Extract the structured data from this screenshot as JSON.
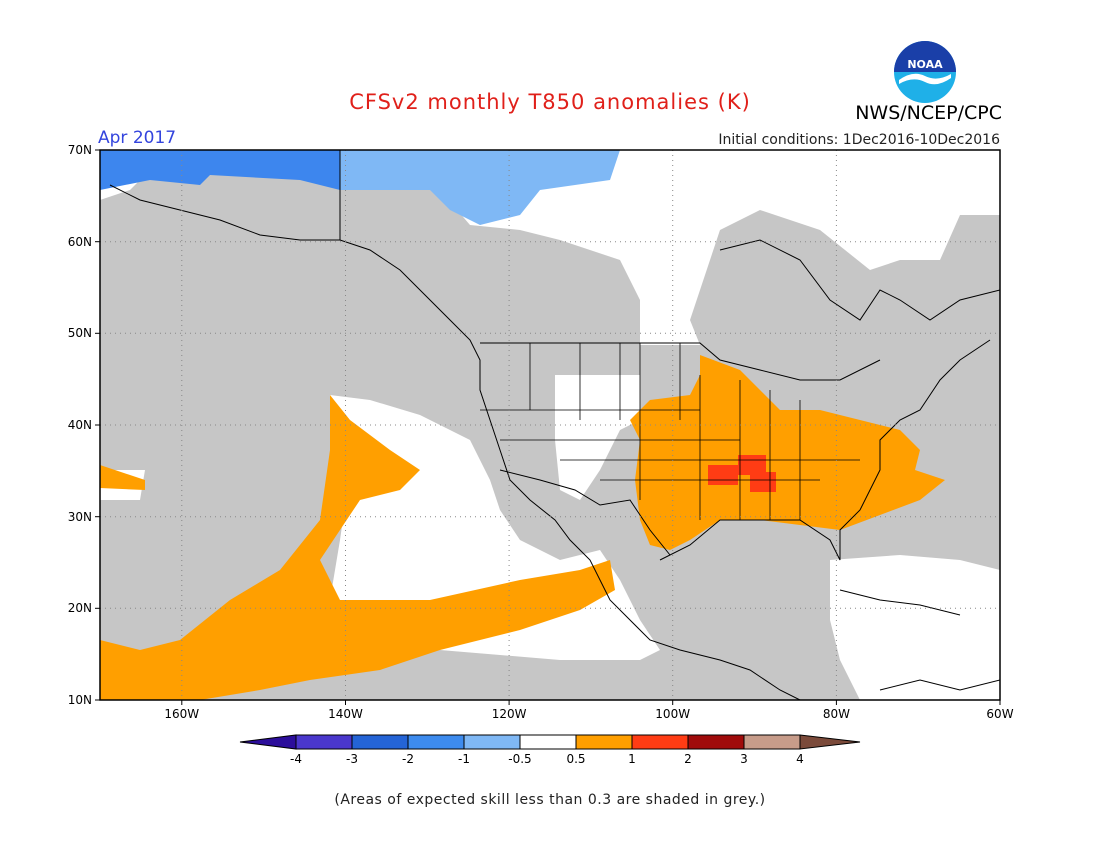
{
  "header": {
    "title": "CFSv2 monthly T850 anomalies (K)",
    "agency": "NWS/NCEP/CPC",
    "logo_text": "NOAA",
    "valid_month": "Apr 2017",
    "initial_conditions": "Initial conditions: 1Dec2016-10Dec2016"
  },
  "map": {
    "latitude_labels": [
      "70N",
      "60N",
      "50N",
      "40N",
      "30N",
      "20N",
      "10N"
    ],
    "longitude_labels": [
      "160W",
      "140W",
      "120W",
      "100W",
      "80W",
      "60W"
    ],
    "extent": {
      "lon_min": -170,
      "lon_max": -60,
      "lat_min": 10,
      "lat_max": 70
    },
    "colors": {
      "skill_grey": "#c6c6c6",
      "ocean_land": "#ffffff",
      "warm_orange": "#ff9f00",
      "warm_red": "#ff3c14",
      "cool_blue": "#5a9ff0",
      "mid_blue": "#3d86ee"
    }
  },
  "colorbar": {
    "labels": [
      "-4",
      "-3",
      "-2",
      "-1",
      "-0.5",
      "0.5",
      "1",
      "2",
      "3",
      "4"
    ],
    "colors": [
      "#2c0e9b",
      "#4a37cc",
      "#2464d6",
      "#3d8bee",
      "#7fb8f5",
      "#ffffff",
      "#ff9f00",
      "#ff3c14",
      "#a00b0b",
      "#c79c8a",
      "#7b4a3a"
    ]
  },
  "footnote": "(Areas of expected skill less than 0.3 are shaded in grey.)"
}
